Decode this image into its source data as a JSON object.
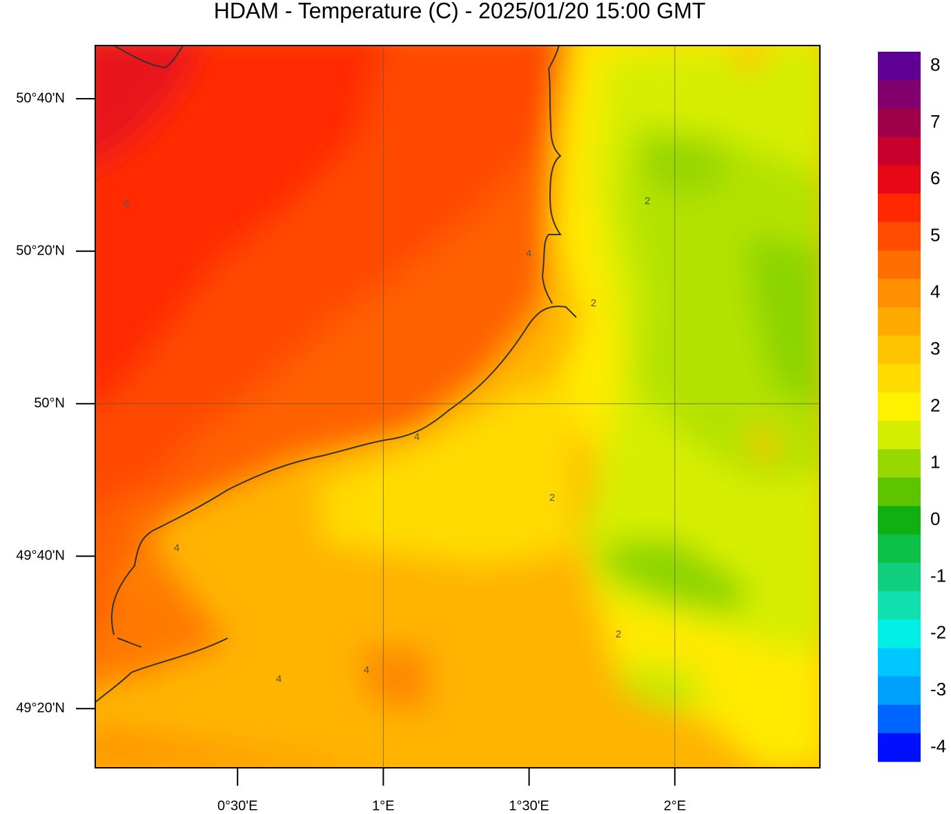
{
  "title": "HDAM - Temperature (C)  -  2025/01/20  15:00 GMT",
  "map": {
    "xlim": [
      0.0118,
      2.4976
    ],
    "ylim": [
      49.204,
      50.783
    ],
    "xticks": [
      {
        "value": 0.5,
        "label": "0°30'E"
      },
      {
        "value": 1,
        "label": "1°E"
      },
      {
        "value": 1.5,
        "label": "1°30'E"
      },
      {
        "value": 2,
        "label": "2°E"
      }
    ],
    "yticks": [
      {
        "value": 50.6667,
        "label": "50°40'N"
      },
      {
        "value": 50.3333,
        "label": "50°20'N"
      },
      {
        "value": 50,
        "label": "50°N"
      },
      {
        "value": 49.6667,
        "label": "49°40'N"
      },
      {
        "value": 49.3333,
        "label": "49°20'N"
      }
    ],
    "contour_labels": [
      6,
      4,
      4,
      4,
      4,
      2,
      2,
      2,
      2,
      4
    ]
  },
  "colorbar": {
    "lim": [
      -4.25,
      8.25
    ],
    "ticks": [
      8,
      7,
      6,
      5,
      4,
      3,
      2,
      1,
      0,
      -1,
      -2,
      -3,
      -4
    ],
    "colors": [
      "#5e0094",
      "#82006e",
      "#a0004a",
      "#c8002c",
      "#e60814",
      "#ff2800",
      "#ff4c00",
      "#ff6e00",
      "#ff9000",
      "#ffaa00",
      "#ffc400",
      "#ffdc00",
      "#fff200",
      "#d4ee00",
      "#96d800",
      "#5ec400",
      "#10b010",
      "#0cc048",
      "#10d080",
      "#10e0b0",
      "#00f0e8",
      "#00c8ff",
      "#00a0ff",
      "#0064ff",
      "#0010ff"
    ]
  }
}
